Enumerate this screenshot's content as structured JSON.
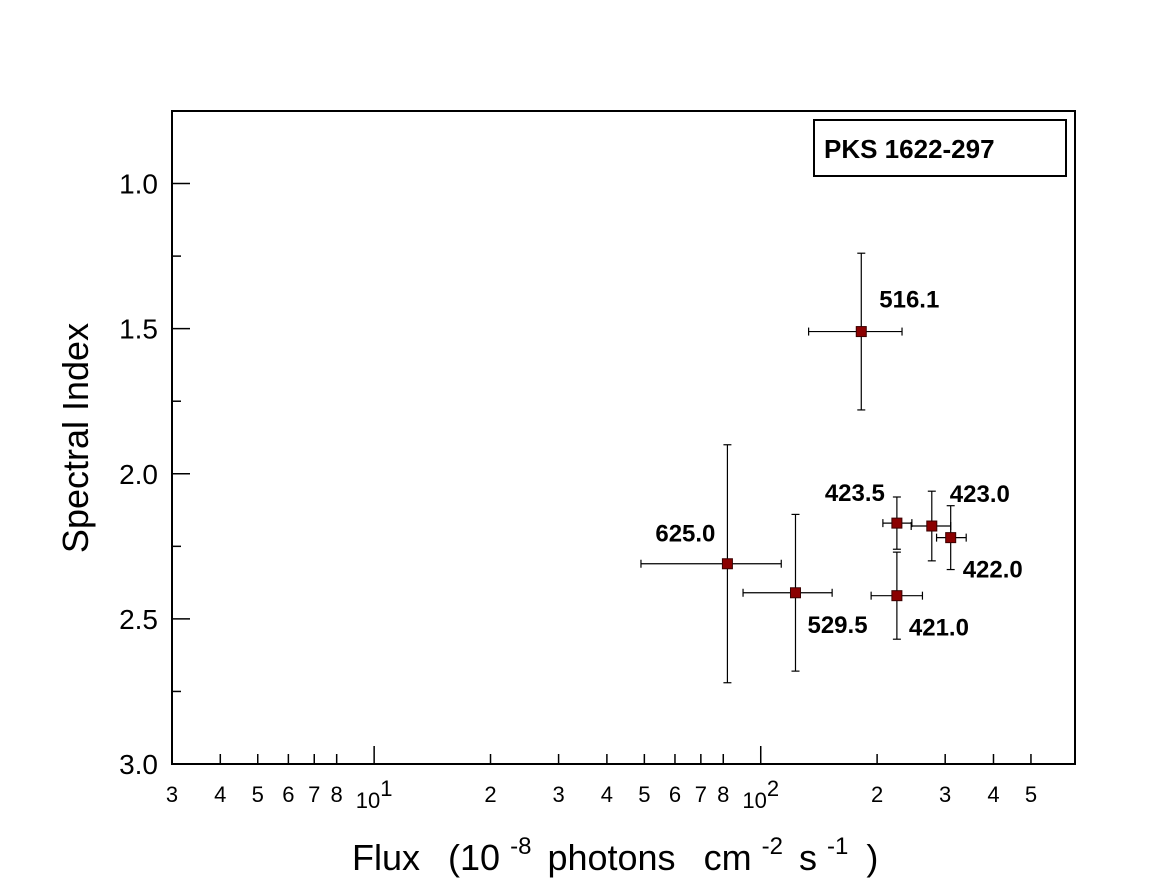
{
  "chart_data": {
    "type": "scatter",
    "legend_title": "PKS 1622-297",
    "legend_position": "top-right",
    "xlabel": {
      "main": "Flux",
      "open": "(10",
      "exp1": "-8",
      "mid1": "photons",
      "unit": "cm",
      "exp2": "-2",
      "s": "s",
      "exp3": "-1",
      "close": ")"
    },
    "ylabel": "Spectral Index",
    "x_scale": "log",
    "xlim": [
      3,
      6.5
    ],
    "xlim_upper_log_decade_note": "",
    "x_range": [
      3,
      650
    ],
    "y_range": [
      0.75,
      3.0
    ],
    "y_inverted": true,
    "grid": false,
    "x_tick_labels": [
      {
        "value": 3,
        "label": "3"
      },
      {
        "value": 4,
        "label": "4"
      },
      {
        "value": 5,
        "label": "5"
      },
      {
        "value": 6,
        "label": "6"
      },
      {
        "value": 7,
        "label": "7"
      },
      {
        "value": 8,
        "label": "8"
      },
      {
        "value": 10,
        "label": "10",
        "sup": "1"
      },
      {
        "value": 20,
        "label": "2"
      },
      {
        "value": 30,
        "label": "3"
      },
      {
        "value": 40,
        "label": "4"
      },
      {
        "value": 50,
        "label": "5"
      },
      {
        "value": 60,
        "label": "6"
      },
      {
        "value": 70,
        "label": "7"
      },
      {
        "value": 80,
        "label": "8"
      },
      {
        "value": 100,
        "label": "10",
        "sup": "2"
      },
      {
        "value": 200,
        "label": "2"
      },
      {
        "value": 300,
        "label": "3"
      },
      {
        "value": 400,
        "label": "4"
      },
      {
        "value": 500,
        "label": "5"
      }
    ],
    "y_tick_labels": [
      {
        "value": 1.0,
        "label": "1.0"
      },
      {
        "value": 1.5,
        "label": "1.5"
      },
      {
        "value": 2.0,
        "label": "2.0"
      },
      {
        "value": 2.5,
        "label": "2.5"
      },
      {
        "value": 3.0,
        "label": "3.0"
      }
    ],
    "points": [
      {
        "label": "516.1",
        "x": 182,
        "y": 1.51,
        "x_lo": 133,
        "x_hi": 232,
        "y_lo": 1.24,
        "y_hi": 1.78,
        "label_pos": "upper-right"
      },
      {
        "label": "625.0",
        "x": 82,
        "y": 2.31,
        "x_lo": 49,
        "x_hi": 113,
        "y_lo": 1.9,
        "y_hi": 2.72,
        "label_pos": "upper-left"
      },
      {
        "label": "529.5",
        "x": 123,
        "y": 2.41,
        "x_lo": 90,
        "x_hi": 153,
        "y_lo": 2.14,
        "y_hi": 2.68,
        "label_pos": "lower-right"
      },
      {
        "label": "423.5",
        "x": 225,
        "y": 2.17,
        "x_lo": 207,
        "x_hi": 246,
        "y_lo": 2.08,
        "y_hi": 2.26,
        "label_pos": "upper-left"
      },
      {
        "label": "423.0",
        "x": 277,
        "y": 2.18,
        "x_lo": 245,
        "x_hi": 310,
        "y_lo": 2.06,
        "y_hi": 2.3,
        "label_pos": "upper-right"
      },
      {
        "label": "422.0",
        "x": 310,
        "y": 2.22,
        "x_lo": 285,
        "x_hi": 340,
        "y_lo": 2.11,
        "y_hi": 2.33,
        "label_pos": "lower-right"
      },
      {
        "label": "421.0",
        "x": 225,
        "y": 2.42,
        "x_lo": 193,
        "x_hi": 262,
        "y_lo": 2.27,
        "y_hi": 2.57,
        "label_pos": "lower-right"
      }
    ]
  }
}
